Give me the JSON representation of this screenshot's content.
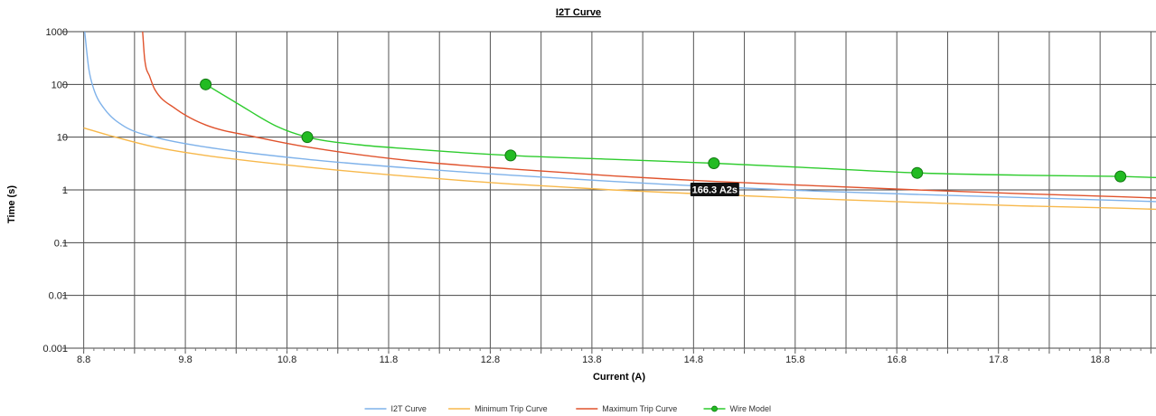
{
  "chart_data": {
    "type": "line",
    "title": "I2T Curve",
    "xlabel": "Current (A)",
    "ylabel": "Time (s)",
    "xlim": [
      8.75,
      19.35
    ],
    "ylim": [
      0.001,
      1000
    ],
    "x_scale": "linear",
    "y_scale": "log",
    "grid": true,
    "legend_position": "bottom-center",
    "x_ticks": [
      "8.8",
      "9.8",
      "10.8",
      "11.8",
      "12.8",
      "13.8",
      "14.8",
      "15.8",
      "16.8",
      "17.8",
      "18.8"
    ],
    "y_ticks": [
      "1000",
      "100",
      "10",
      "1",
      "0.1",
      "0.01",
      "0.001"
    ],
    "series": [
      {
        "name": "I2T Curve",
        "color": "#7fb2ea",
        "markers": false,
        "x": [
          8.81,
          8.85,
          8.9,
          9.0,
          9.2,
          9.5,
          10.0,
          11.0,
          12.0,
          13.0,
          14.0,
          15.0,
          16.0,
          17.0,
          18.0,
          19.0,
          19.35
        ],
        "y": [
          1000,
          200,
          80,
          35,
          16,
          10,
          6.5,
          3.8,
          2.6,
          1.9,
          1.45,
          1.15,
          0.95,
          0.82,
          0.72,
          0.63,
          0.6
        ]
      },
      {
        "name": "Minimum Trip Curve",
        "color": "#f7b84b",
        "markers": false,
        "x": [
          8.8,
          9.0,
          9.5,
          10.0,
          11.0,
          12.0,
          13.0,
          14.0,
          15.0,
          16.0,
          17.0,
          18.0,
          19.0,
          19.35
        ],
        "y": [
          15,
          11.5,
          6.5,
          4.5,
          2.7,
          1.8,
          1.3,
          1.0,
          0.82,
          0.68,
          0.58,
          0.5,
          0.45,
          0.43
        ]
      },
      {
        "name": "Maximum Trip Curve",
        "color": "#e0532d",
        "markers": false,
        "x": [
          9.38,
          9.4,
          9.45,
          9.5,
          9.7,
          10.0,
          10.5,
          11.0,
          12.0,
          13.0,
          14.0,
          15.0,
          16.0,
          17.0,
          18.0,
          19.0,
          19.35
        ],
        "y": [
          1000,
          300,
          140,
          80,
          35,
          17,
          10,
          6.5,
          3.6,
          2.5,
          1.85,
          1.45,
          1.2,
          1.0,
          0.85,
          0.74,
          0.7
        ]
      },
      {
        "name": "Wire Model",
        "color": "#2ecc2e",
        "markers": true,
        "x": [
          10.0,
          10.3,
          10.7,
          11.0,
          11.5,
          12.0,
          13.0,
          14.0,
          15.0,
          16.0,
          17.0,
          18.0,
          19.0,
          19.35
        ],
        "y": [
          100,
          45,
          16,
          10,
          7.2,
          6.0,
          4.5,
          3.8,
          3.2,
          2.6,
          2.1,
          1.9,
          1.8,
          1.72
        ],
        "marker_x": [
          10.0,
          11.0,
          13.0,
          15.0,
          17.0,
          19.0
        ],
        "marker_y": [
          100,
          10,
          4.5,
          3.2,
          2.1,
          1.8
        ]
      }
    ],
    "annotations": [
      {
        "text": "166.3 A2s",
        "x": 15.0,
        "y": 1.0
      }
    ]
  }
}
